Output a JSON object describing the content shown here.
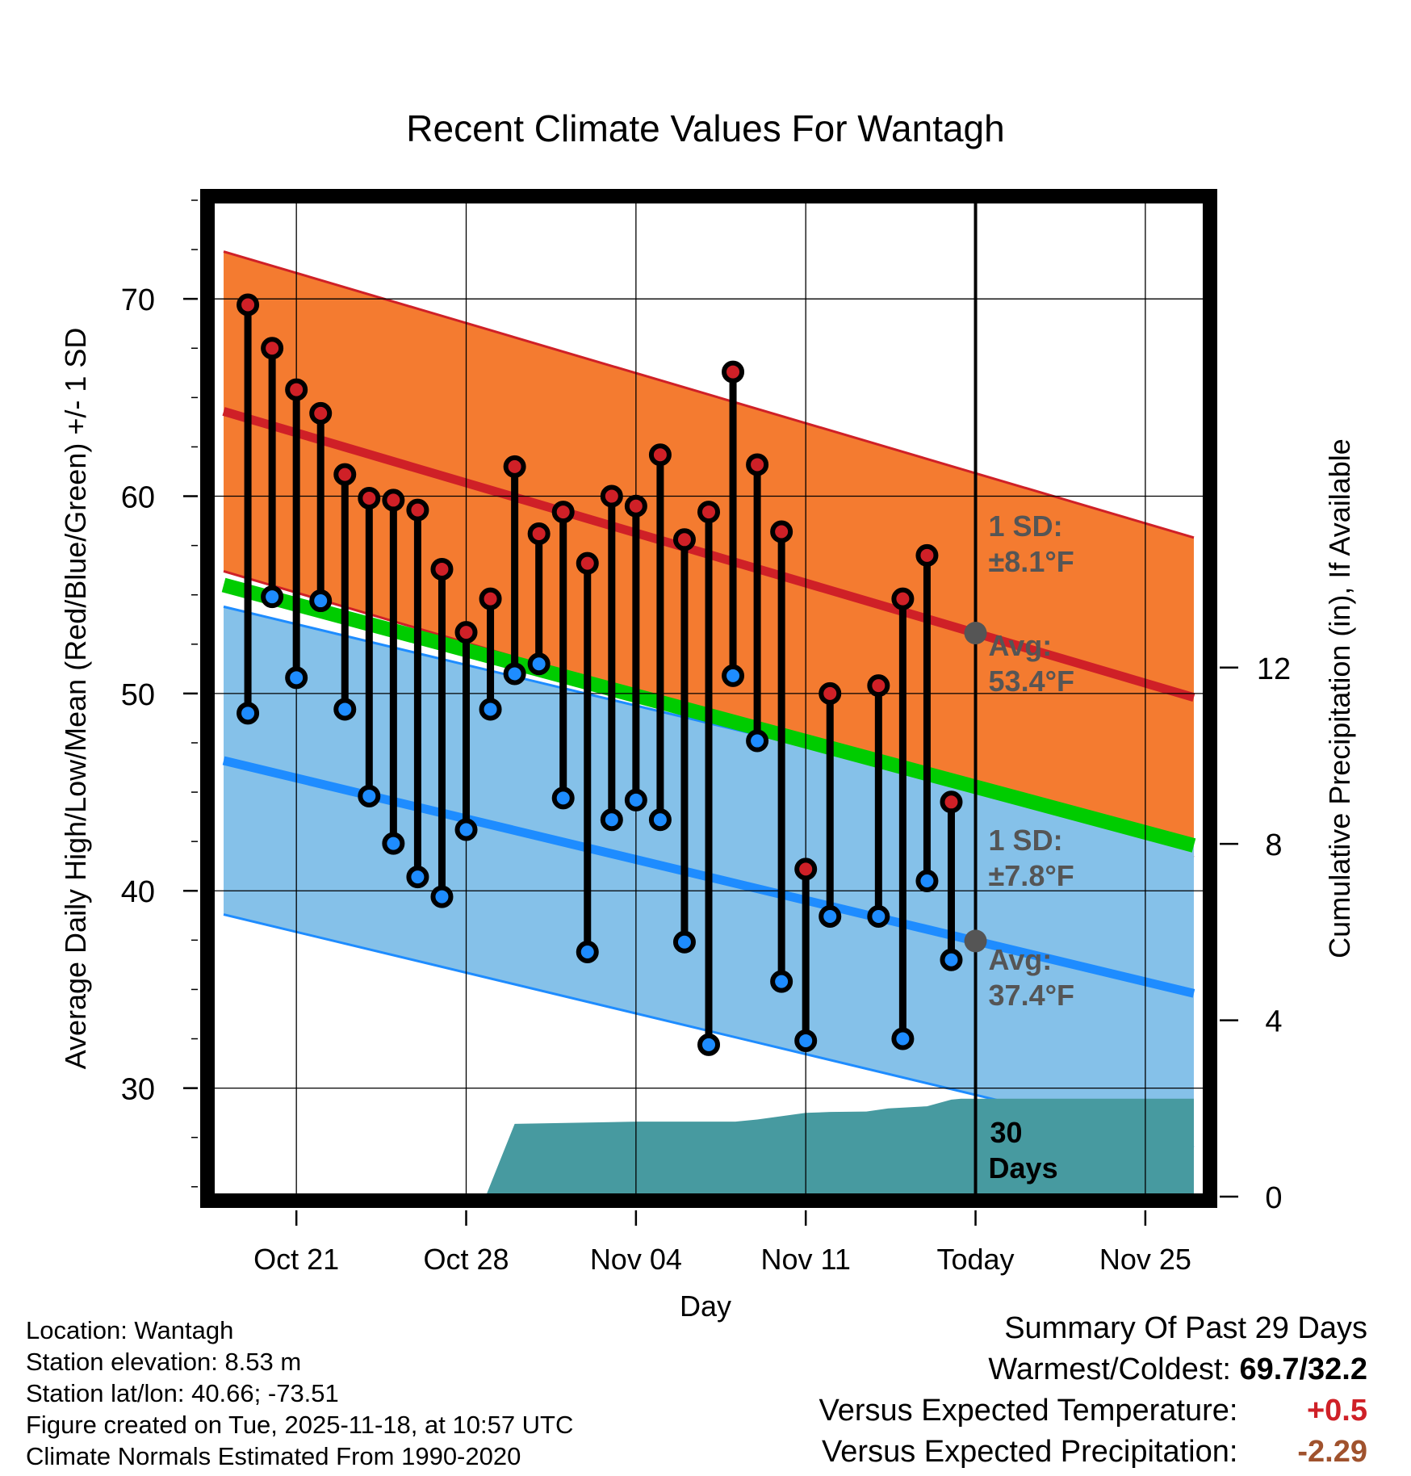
{
  "chart_data": {
    "type": "line",
    "title": "Recent Climate Values For Wantagh",
    "xlabel": "Day",
    "ylabel": "Average Daily High/Low/Mean (Red/Blue/Green) +/- 1 SD",
    "y2label": "Cumulative Precipitation (in), If Available",
    "x_range": [
      -3.5,
      37.5
    ],
    "ylim": [
      24.5,
      75
    ],
    "y2lim": [
      0,
      22.6
    ],
    "y_ticks": [
      30,
      40,
      50,
      60,
      70
    ],
    "y2_ticks": [
      0,
      4,
      8,
      12
    ],
    "x_ticks": [
      {
        "day": 0,
        "label": "Oct 21"
      },
      {
        "day": 7,
        "label": "Oct 28"
      },
      {
        "day": 14,
        "label": "Nov 04"
      },
      {
        "day": 21,
        "label": "Nov 11"
      },
      {
        "day": 28,
        "label": "Today"
      },
      {
        "day": 35,
        "label": "Nov 25"
      }
    ],
    "today_day": 28,
    "normals": {
      "high_mean": {
        "start_day": -3,
        "start": 64.3,
        "end_day": 37,
        "end": 49.8
      },
      "high_sd": 8.1,
      "low_mean": {
        "start_day": -3,
        "start": 46.6,
        "end_day": 37,
        "end": 34.8
      },
      "low_sd": 7.8,
      "mean": {
        "start_day": -3,
        "start": 55.5,
        "end_day": 37,
        "end": 42.3
      }
    },
    "daily": {
      "days": [
        -2,
        -1,
        0,
        1,
        2,
        3,
        4,
        5,
        6,
        7,
        8,
        9,
        10,
        11,
        12,
        13,
        14,
        15,
        16,
        17,
        18,
        19,
        20,
        21,
        22,
        23,
        24,
        25,
        26,
        27
      ],
      "highs": [
        69.7,
        67.5,
        65.4,
        64.2,
        61.1,
        59.9,
        59.8,
        59.3,
        56.3,
        53.1,
        54.8,
        61.5,
        58.1,
        59.2,
        56.6,
        60.0,
        59.5,
        62.1,
        57.8,
        59.2,
        66.3,
        61.6,
        58.2,
        41.1,
        50.0,
        null,
        50.4,
        54.8,
        57.0,
        44.5
      ],
      "lows": [
        49.0,
        54.9,
        50.8,
        54.7,
        49.2,
        44.8,
        42.4,
        40.7,
        39.7,
        43.1,
        49.2,
        51.0,
        51.5,
        44.7,
        36.9,
        43.6,
        44.6,
        43.6,
        37.4,
        32.2,
        50.9,
        47.6,
        35.4,
        32.4,
        38.7,
        null,
        38.7,
        32.5,
        40.5,
        36.5
      ]
    },
    "precipitation": {
      "days": [
        7.8,
        9.0,
        14.0,
        18.1,
        19.0,
        21.0,
        22.0,
        23.5,
        24.4,
        26.0,
        27.0,
        27.4,
        29.0,
        37.0
      ],
      "values": [
        0,
        1.65,
        1.7,
        1.7,
        1.75,
        1.9,
        1.92,
        1.93,
        2.0,
        2.05,
        2.2,
        2.22,
        2.22,
        2.22
      ]
    },
    "annotations": {
      "high_sd_label": "1 SD:",
      "high_sd_value": "±8.1°F",
      "high_avg_label": "Avg:",
      "high_avg_value": "53.4°F",
      "low_sd_label": "1 SD:",
      "low_sd_value": "±7.8°F",
      "low_avg_label": "Avg:",
      "low_avg_value": "37.4°F",
      "period_num": "30",
      "period_unit": "Days"
    },
    "colors": {
      "high_band": "#f47b30",
      "high_line": "#cf2027",
      "low_band": "#85c1e9",
      "low_line": "#1e8cff",
      "mean_line": "#00cc00",
      "precip": "#479aa0",
      "high_marker": "#cf2027",
      "low_marker": "#1e8cff",
      "annotation": "#555555"
    }
  },
  "footer": {
    "location": "Location: Wantagh",
    "elevation": "Station elevation: 8.53 m",
    "latlon": "Station lat/lon: 40.66; -73.51",
    "created": "Figure created on Tue, 2025-11-18, at 10:57 UTC",
    "normals_source": "Climate Normals Estimated From 1990-2020"
  },
  "summary": {
    "title": "Summary Of Past 29 Days",
    "warm_cold_label": "Warmest/Coldest:",
    "warm_cold_value": "69.7/32.2",
    "temp_label": "Versus Expected Temperature:",
    "temp_value": "+0.5",
    "temp_color": "#cf2027",
    "precip_label": "Versus Expected Precipitation:",
    "precip_value": "-2.29",
    "precip_color": "#a0522d"
  }
}
